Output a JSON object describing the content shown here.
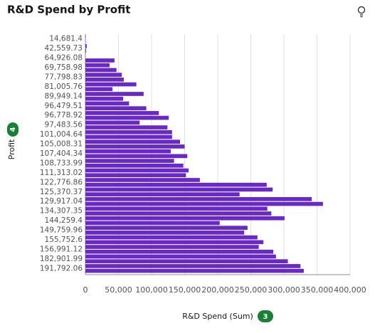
{
  "chart_data": {
    "type": "hbar",
    "title": "R&D Spend by Profit",
    "y_label": "Profit",
    "y_badge": "4",
    "x_label": "R&D Spend (Sum)",
    "x_badge": "3",
    "color": "#6929c4",
    "grid": true,
    "categories": [
      "14,681.4",
      null,
      "42,559.73",
      null,
      "64,926.08",
      null,
      "69,758.98",
      null,
      "77,798.83",
      null,
      "81,005.76",
      null,
      "89,949.14",
      null,
      "96,479.51",
      null,
      "96,778.92",
      null,
      "97,483.56",
      null,
      "101,004.64",
      null,
      "105,008.31",
      null,
      "107,404.34",
      null,
      "108,733.99",
      null,
      "111,313.02",
      null,
      "122,776.86",
      null,
      "125,370.37",
      null,
      "129,917.04",
      null,
      "134,307.35",
      null,
      "144,259.4",
      null,
      "149,759.96",
      null,
      "155,752.6",
      null,
      "156,991.12",
      null,
      "182,901.99",
      null,
      "191,792.06",
      null
    ],
    "values": [
      500,
      0,
      2000,
      1000,
      0,
      44000,
      36500,
      47000,
      55000,
      58000,
      77000,
      41000,
      88000,
      57000,
      66000,
      92000,
      111000,
      126000,
      82000,
      124000,
      131000,
      131000,
      143000,
      150000,
      129000,
      154000,
      134000,
      148000,
      156000,
      152000,
      173000,
      274000,
      283000,
      233000,
      342000,
      359000,
      275000,
      281000,
      301000,
      203000,
      245000,
      240000,
      260000,
      269000,
      262000,
      284000,
      288000,
      306000,
      325000,
      330000
    ],
    "xlim": [
      0,
      400000
    ],
    "xticks": [
      0,
      {
        "value": 50000,
        "label": "50,000"
      },
      {
        "value": 100000,
        "label": "100,000"
      },
      {
        "value": 150000,
        "label": "150,000"
      },
      {
        "value": 200000,
        "label": "200,000"
      },
      {
        "value": 250000,
        "label": "250,000"
      },
      {
        "value": 300000,
        "label": "300,000"
      },
      {
        "value": 350000,
        "label": "350,000"
      },
      {
        "value": 400000,
        "label": "400,000"
      }
    ]
  }
}
